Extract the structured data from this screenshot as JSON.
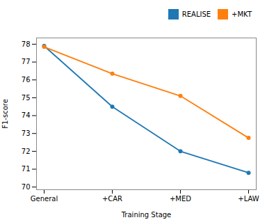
{
  "chart_data": {
    "type": "line",
    "xlabel": "Training Stage",
    "ylabel": "F1-score",
    "categories": [
      "General",
      "+CAR",
      "+MED",
      "+LAW"
    ],
    "series": [
      {
        "name": "REALISE",
        "color": "#1f77b4",
        "values": [
          77.9,
          74.5,
          72.0,
          70.8
        ]
      },
      {
        "name": "+MKT",
        "color": "#ff7f0e",
        "values": [
          77.85,
          76.35,
          75.1,
          72.75
        ]
      }
    ],
    "ylim": [
      69.85,
      78.35
    ],
    "yticks": [
      70,
      71,
      72,
      73,
      74,
      75,
      76,
      77,
      78
    ],
    "marker": "o",
    "legend": "upper right",
    "grid": false
  }
}
